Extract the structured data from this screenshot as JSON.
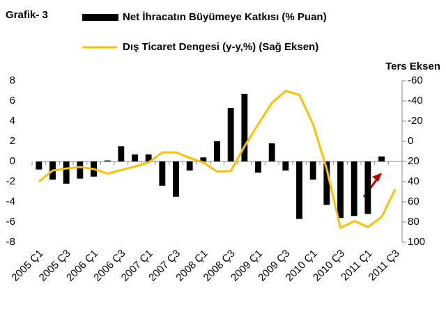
{
  "chart_data": {
    "type": "bar-line",
    "title": "Grafik- 3",
    "y2_axis_note": "Ters Eksen",
    "categories": [
      "2005 Ç1",
      null,
      "2005 Ç3",
      null,
      "2006 Ç1",
      null,
      "2006 Ç3",
      null,
      "2007 Ç1",
      null,
      "2007 Ç3",
      null,
      "2008 Ç1",
      null,
      "2008 Ç3",
      null,
      "2009 Ç1",
      null,
      "2009 Ç3",
      null,
      "2010 Ç1",
      null,
      "2010 Ç3",
      null,
      "2011 Ç1",
      null,
      "2011 Ç3"
    ],
    "series": [
      {
        "name": "Net İhracatın Büyümeye Katkısı (% Puan)",
        "type": "bar",
        "color": "#000000",
        "axis": "y",
        "values": [
          -0.8,
          -1.8,
          -2.2,
          -1.7,
          -1.5,
          0.1,
          1.5,
          0.7,
          0.7,
          -2.4,
          -3.5,
          -0.9,
          0.4,
          2.0,
          5.3,
          6.7,
          -1.1,
          1.8,
          -0.9,
          -5.7,
          -1.8,
          -4.3,
          -5.6,
          -5.4,
          -5.2,
          0.5,
          null
        ]
      },
      {
        "name": "Dış Ticaret Dengesi (y-y,%) (Sağ Eksen)",
        "type": "line",
        "color": "#ffc000",
        "axis": "y2",
        "values": [
          40,
          29,
          27,
          25.5,
          27.5,
          32,
          28.5,
          25,
          21,
          11,
          11,
          16.5,
          21,
          30,
          29.5,
          5,
          -17,
          -38,
          -50,
          -46,
          -17,
          27.5,
          86,
          79,
          85,
          75,
          47.5
        ]
      }
    ],
    "ylim": [
      -8,
      8
    ],
    "yticks": [
      -8,
      -6,
      -4,
      -2,
      0,
      2,
      4,
      6,
      8
    ],
    "y2lim": [
      -60,
      100
    ],
    "y2ticks": [
      -60,
      -40,
      -20,
      0,
      20,
      40,
      60,
      80,
      100
    ],
    "y2_inverted": true
  }
}
